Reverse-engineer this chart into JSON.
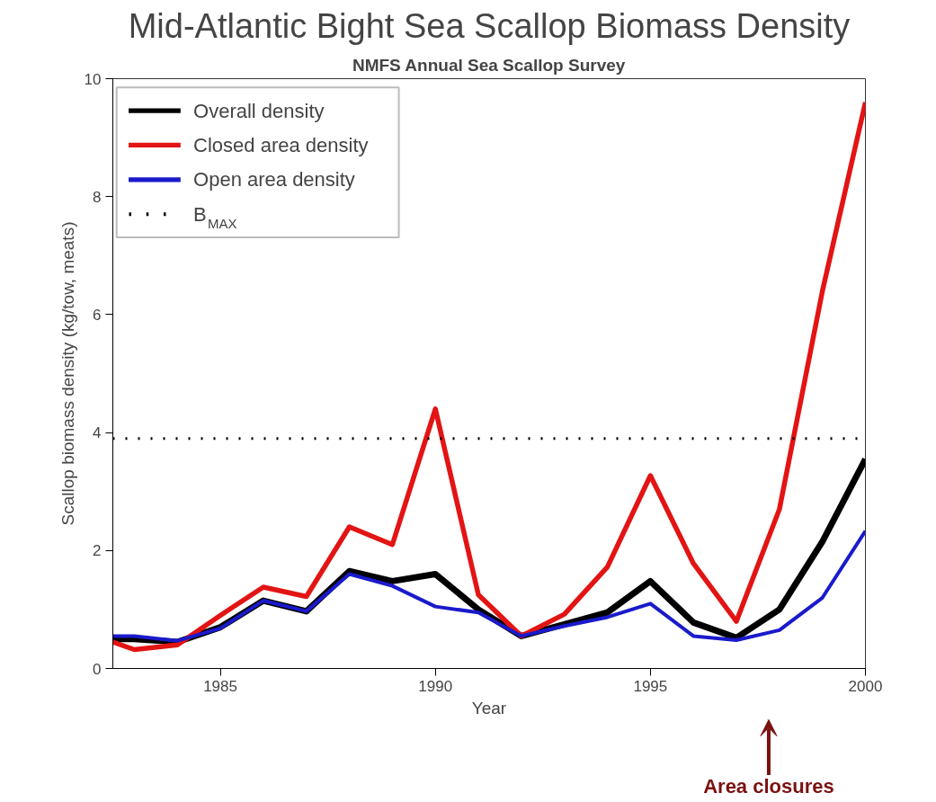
{
  "chart_data": {
    "type": "line",
    "title": "Mid-Atlantic Bight Sea Scallop Biomass Density",
    "subtitle": "NMFS Annual Sea Scallop Survey",
    "xlabel": "Year",
    "ylabel": "Scallop biomass density (kg/tow, meats)",
    "x": [
      1982.5,
      1983,
      1984,
      1985,
      1986,
      1987,
      1988,
      1989,
      1990,
      1991,
      1992,
      1993,
      1994,
      1995,
      1996,
      1997,
      1998,
      1999,
      2000
    ],
    "series": [
      {
        "name": "Overall density",
        "color": "#000000",
        "values": [
          0.5,
          0.5,
          0.45,
          0.7,
          1.15,
          0.97,
          1.65,
          1.48,
          1.6,
          1.0,
          0.55,
          0.75,
          0.95,
          1.48,
          0.78,
          0.52,
          1.0,
          2.15,
          3.55
        ]
      },
      {
        "name": "Closed area density",
        "color": "#e31414",
        "values": [
          0.45,
          0.32,
          0.4,
          0.9,
          1.38,
          1.22,
          2.4,
          2.1,
          4.4,
          1.25,
          0.55,
          0.92,
          1.72,
          3.27,
          1.78,
          0.8,
          2.7,
          6.4,
          9.6
        ]
      },
      {
        "name": "Open area density",
        "color": "#1a1acc",
        "values": [
          0.55,
          0.55,
          0.47,
          0.68,
          1.15,
          0.97,
          1.6,
          1.4,
          1.05,
          0.95,
          0.55,
          0.72,
          0.87,
          1.1,
          0.55,
          0.48,
          0.65,
          1.2,
          2.33
        ]
      }
    ],
    "ref_lines": [
      {
        "axis": "y",
        "value": 3.9,
        "label": "B$_{MAX}$",
        "color": "#000000",
        "line_style": "dotted"
      }
    ],
    "annotations": [
      "Area closures"
    ],
    "xlim": [
      1982.5,
      2000
    ],
    "xticks": [
      1985,
      1990,
      1995,
      2000
    ],
    "ylim": [
      0,
      10
    ],
    "yticks": [
      0,
      2,
      4,
      6,
      8,
      10
    ],
    "grid": false,
    "legend": "top left",
    "line_style": "solid",
    "marker": "none"
  }
}
